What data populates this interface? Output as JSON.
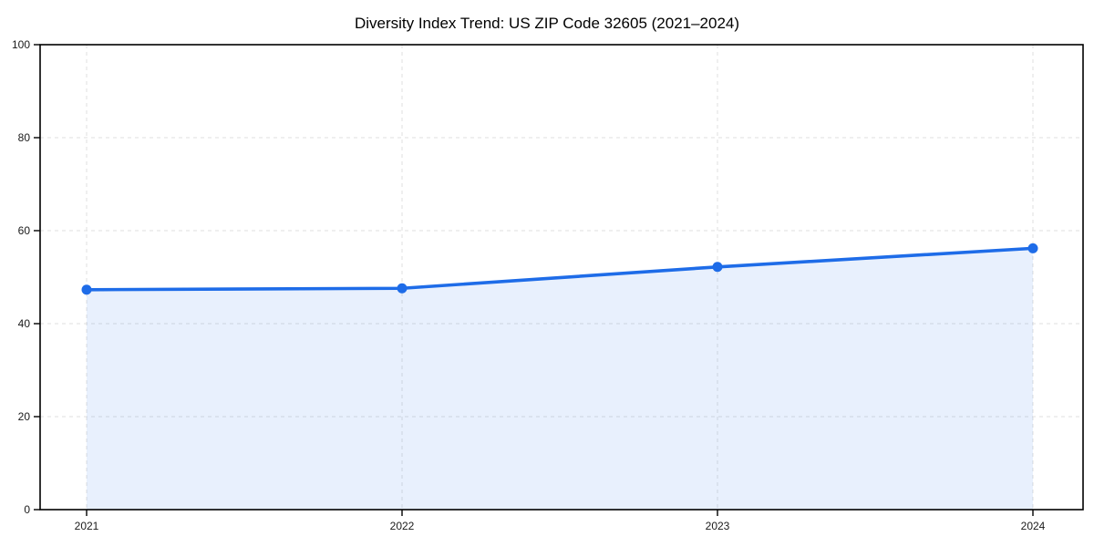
{
  "chart_data": {
    "type": "area",
    "title": "Diversity Index Trend: US ZIP Code 32605 (2021–2024)",
    "categories": [
      "2021",
      "2022",
      "2023",
      "2024"
    ],
    "series": [
      {
        "name": "Diversity Index",
        "values": [
          47.3,
          47.6,
          52.2,
          56.2
        ]
      }
    ],
    "xlabel": "",
    "ylabel": "",
    "ylim": [
      0,
      100
    ],
    "yticks": [
      0,
      20,
      40,
      60,
      80,
      100
    ],
    "grid": true,
    "grid_style": "dashed",
    "legend": null,
    "colors": {
      "line": "#1e6ce8",
      "marker": "#1e6ce8",
      "fill": "rgba(30,108,232,0.10)",
      "grid": "#dfdfdf",
      "frame": "#000000",
      "text": "#1a1a1a",
      "background": "#ffffff"
    }
  }
}
